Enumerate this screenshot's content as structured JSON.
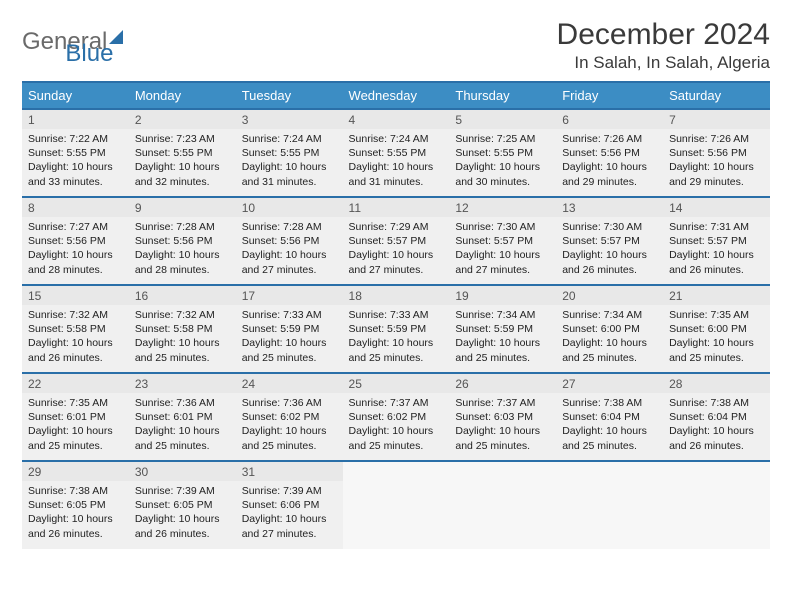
{
  "logo": {
    "part1": "General",
    "part2": "Blue"
  },
  "header": {
    "month_title": "December 2024",
    "location": "In Salah, In Salah, Algeria"
  },
  "calendar": {
    "day_headers": [
      "Sunday",
      "Monday",
      "Tuesday",
      "Wednesday",
      "Thursday",
      "Friday",
      "Saturday"
    ],
    "header_bg": "#3c8dc4",
    "rule_color": "#2a6fa8",
    "cell_bg": "#f0f0f0",
    "daynum_bg": "#e8e8e8",
    "header_font_size": 13,
    "daynum_font_size": 12,
    "info_font_size": 10.5,
    "columns": 7,
    "leading_blanks": 0,
    "days": [
      {
        "n": 1,
        "sr": "7:22 AM",
        "ss": "5:55 PM",
        "dl": "10 hours and 33 minutes."
      },
      {
        "n": 2,
        "sr": "7:23 AM",
        "ss": "5:55 PM",
        "dl": "10 hours and 32 minutes."
      },
      {
        "n": 3,
        "sr": "7:24 AM",
        "ss": "5:55 PM",
        "dl": "10 hours and 31 minutes."
      },
      {
        "n": 4,
        "sr": "7:24 AM",
        "ss": "5:55 PM",
        "dl": "10 hours and 31 minutes."
      },
      {
        "n": 5,
        "sr": "7:25 AM",
        "ss": "5:55 PM",
        "dl": "10 hours and 30 minutes."
      },
      {
        "n": 6,
        "sr": "7:26 AM",
        "ss": "5:56 PM",
        "dl": "10 hours and 29 minutes."
      },
      {
        "n": 7,
        "sr": "7:26 AM",
        "ss": "5:56 PM",
        "dl": "10 hours and 29 minutes."
      },
      {
        "n": 8,
        "sr": "7:27 AM",
        "ss": "5:56 PM",
        "dl": "10 hours and 28 minutes."
      },
      {
        "n": 9,
        "sr": "7:28 AM",
        "ss": "5:56 PM",
        "dl": "10 hours and 28 minutes."
      },
      {
        "n": 10,
        "sr": "7:28 AM",
        "ss": "5:56 PM",
        "dl": "10 hours and 27 minutes."
      },
      {
        "n": 11,
        "sr": "7:29 AM",
        "ss": "5:57 PM",
        "dl": "10 hours and 27 minutes."
      },
      {
        "n": 12,
        "sr": "7:30 AM",
        "ss": "5:57 PM",
        "dl": "10 hours and 27 minutes."
      },
      {
        "n": 13,
        "sr": "7:30 AM",
        "ss": "5:57 PM",
        "dl": "10 hours and 26 minutes."
      },
      {
        "n": 14,
        "sr": "7:31 AM",
        "ss": "5:57 PM",
        "dl": "10 hours and 26 minutes."
      },
      {
        "n": 15,
        "sr": "7:32 AM",
        "ss": "5:58 PM",
        "dl": "10 hours and 26 minutes."
      },
      {
        "n": 16,
        "sr": "7:32 AM",
        "ss": "5:58 PM",
        "dl": "10 hours and 25 minutes."
      },
      {
        "n": 17,
        "sr": "7:33 AM",
        "ss": "5:59 PM",
        "dl": "10 hours and 25 minutes."
      },
      {
        "n": 18,
        "sr": "7:33 AM",
        "ss": "5:59 PM",
        "dl": "10 hours and 25 minutes."
      },
      {
        "n": 19,
        "sr": "7:34 AM",
        "ss": "5:59 PM",
        "dl": "10 hours and 25 minutes."
      },
      {
        "n": 20,
        "sr": "7:34 AM",
        "ss": "6:00 PM",
        "dl": "10 hours and 25 minutes."
      },
      {
        "n": 21,
        "sr": "7:35 AM",
        "ss": "6:00 PM",
        "dl": "10 hours and 25 minutes."
      },
      {
        "n": 22,
        "sr": "7:35 AM",
        "ss": "6:01 PM",
        "dl": "10 hours and 25 minutes."
      },
      {
        "n": 23,
        "sr": "7:36 AM",
        "ss": "6:01 PM",
        "dl": "10 hours and 25 minutes."
      },
      {
        "n": 24,
        "sr": "7:36 AM",
        "ss": "6:02 PM",
        "dl": "10 hours and 25 minutes."
      },
      {
        "n": 25,
        "sr": "7:37 AM",
        "ss": "6:02 PM",
        "dl": "10 hours and 25 minutes."
      },
      {
        "n": 26,
        "sr": "7:37 AM",
        "ss": "6:03 PM",
        "dl": "10 hours and 25 minutes."
      },
      {
        "n": 27,
        "sr": "7:38 AM",
        "ss": "6:04 PM",
        "dl": "10 hours and 25 minutes."
      },
      {
        "n": 28,
        "sr": "7:38 AM",
        "ss": "6:04 PM",
        "dl": "10 hours and 26 minutes."
      },
      {
        "n": 29,
        "sr": "7:38 AM",
        "ss": "6:05 PM",
        "dl": "10 hours and 26 minutes."
      },
      {
        "n": 30,
        "sr": "7:39 AM",
        "ss": "6:05 PM",
        "dl": "10 hours and 26 minutes."
      },
      {
        "n": 31,
        "sr": "7:39 AM",
        "ss": "6:06 PM",
        "dl": "10 hours and 27 minutes."
      }
    ],
    "labels": {
      "sunrise": "Sunrise:",
      "sunset": "Sunset:",
      "daylight": "Daylight:"
    }
  }
}
